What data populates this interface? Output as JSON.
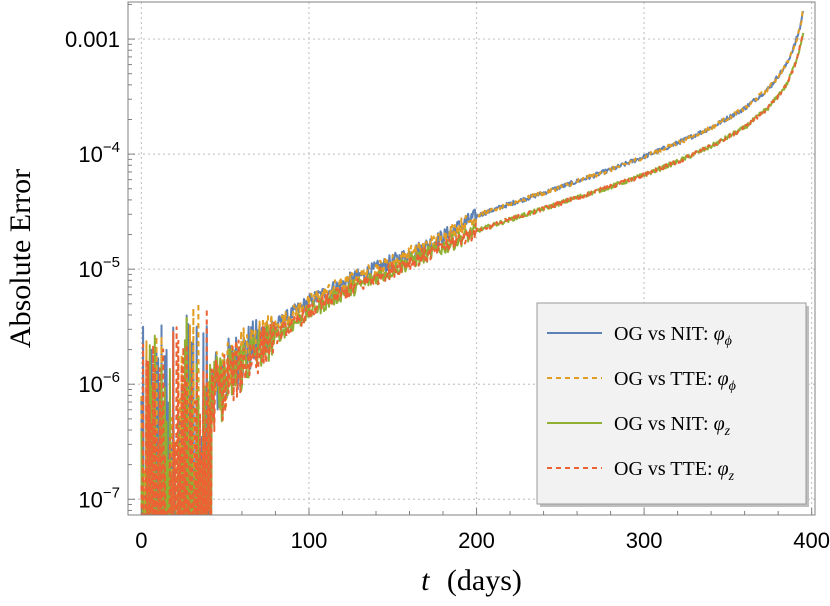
{
  "chart_data": {
    "type": "line",
    "title": "",
    "xlabel": {
      "var": "t",
      "unit": "(days)"
    },
    "ylabel": "Absolute Error",
    "xlim": [
      -8,
      402
    ],
    "ylim": [
      7.3e-08,
      0.0021
    ],
    "yscale": "log",
    "x_ticks": [
      0,
      100,
      200,
      300,
      400
    ],
    "y_ticks": [
      {
        "value": 1e-07,
        "base": "10",
        "exp": "−7"
      },
      {
        "value": 1e-06,
        "base": "10",
        "exp": "−6"
      },
      {
        "value": 1e-05,
        "base": "10",
        "exp": "−5"
      },
      {
        "value": 0.0001,
        "base": "10",
        "exp": "−4"
      },
      {
        "value": 0.001,
        "text": "0.001"
      }
    ],
    "grid": true,
    "legend_position": "bottom-right",
    "series": [
      {
        "name": "OG vs NIT: φ_ϕ",
        "legend": {
          "prefix": "OG vs NIT: ",
          "sym": "φ",
          "sub": "ϕ"
        },
        "color": "#5E81B5",
        "dash": "solid",
        "points": [
          [
            0,
            4e-07
          ],
          [
            20,
            5e-07
          ],
          [
            40,
            8.5e-07
          ],
          [
            60,
            1.8e-06
          ],
          [
            80,
            3.2e-06
          ],
          [
            100,
            5.2e-06
          ],
          [
            120,
            7.5e-06
          ],
          [
            140,
            1e-05
          ],
          [
            160,
            1.35e-05
          ],
          [
            180,
            1.9e-05
          ],
          [
            200,
            2.9e-05
          ],
          [
            220,
            3.7e-05
          ],
          [
            240,
            4.6e-05
          ],
          [
            260,
            5.8e-05
          ],
          [
            280,
            7.3e-05
          ],
          [
            300,
            9.5e-05
          ],
          [
            320,
            0.000125
          ],
          [
            340,
            0.00017
          ],
          [
            360,
            0.00025
          ],
          [
            375,
            0.00038
          ],
          [
            385,
            0.0006
          ],
          [
            390,
            0.0009
          ],
          [
            393,
            0.00125
          ],
          [
            395,
            0.0018
          ]
        ]
      },
      {
        "name": "OG vs TTE: φ_ϕ",
        "legend": {
          "prefix": "OG vs TTE: ",
          "sym": "φ",
          "sub": "ϕ"
        },
        "color": "#E19C24",
        "dash": "dashed",
        "points": [
          [
            0,
            4e-07
          ],
          [
            20,
            5e-07
          ],
          [
            40,
            8.5e-07
          ],
          [
            60,
            1.8e-06
          ],
          [
            80,
            3.2e-06
          ],
          [
            100,
            5.2e-06
          ],
          [
            120,
            7.5e-06
          ],
          [
            140,
            1e-05
          ],
          [
            160,
            1.35e-05
          ],
          [
            180,
            1.9e-05
          ],
          [
            200,
            2.9e-05
          ],
          [
            220,
            3.7e-05
          ],
          [
            240,
            4.6e-05
          ],
          [
            260,
            5.8e-05
          ],
          [
            280,
            7.3e-05
          ],
          [
            300,
            9.5e-05
          ],
          [
            320,
            0.000125
          ],
          [
            340,
            0.00017
          ],
          [
            360,
            0.00025
          ],
          [
            375,
            0.00038
          ],
          [
            385,
            0.0006
          ],
          [
            390,
            0.0009
          ],
          [
            393,
            0.00125
          ],
          [
            395,
            0.0018
          ]
        ]
      },
      {
        "name": "OG vs NIT: φ_z",
        "legend": {
          "prefix": "OG vs NIT: ",
          "sym": "φ",
          "sub": "z"
        },
        "color": "#8FB032",
        "dash": "solid",
        "points": [
          [
            0,
            3.5e-07
          ],
          [
            20,
            4.2e-07
          ],
          [
            40,
            7e-07
          ],
          [
            60,
            1.5e-06
          ],
          [
            80,
            2.6e-06
          ],
          [
            100,
            4.2e-06
          ],
          [
            120,
            6.2e-06
          ],
          [
            140,
            8.5e-06
          ],
          [
            160,
            1.15e-05
          ],
          [
            180,
            1.55e-05
          ],
          [
            200,
            2.15e-05
          ],
          [
            220,
            2.7e-05
          ],
          [
            240,
            3.35e-05
          ],
          [
            260,
            4.2e-05
          ],
          [
            280,
            5.2e-05
          ],
          [
            300,
            6.6e-05
          ],
          [
            320,
            8.6e-05
          ],
          [
            340,
            0.000117
          ],
          [
            360,
            0.00017
          ],
          [
            375,
            0.00026
          ],
          [
            385,
            0.0004
          ],
          [
            390,
            0.0006
          ],
          [
            393,
            0.00085
          ],
          [
            395,
            0.00115
          ]
        ]
      },
      {
        "name": "OG vs TTE: φ_z",
        "legend": {
          "prefix": "OG vs TTE: ",
          "sym": "φ",
          "sub": "z"
        },
        "color": "#EB6235",
        "dash": "dashed",
        "points": [
          [
            0,
            3.5e-07
          ],
          [
            20,
            4.2e-07
          ],
          [
            40,
            7e-07
          ],
          [
            60,
            1.5e-06
          ],
          [
            80,
            2.6e-06
          ],
          [
            100,
            4.2e-06
          ],
          [
            120,
            6.2e-06
          ],
          [
            140,
            8.5e-06
          ],
          [
            160,
            1.15e-05
          ],
          [
            180,
            1.55e-05
          ],
          [
            200,
            2.15e-05
          ],
          [
            220,
            2.7e-05
          ],
          [
            240,
            3.35e-05
          ],
          [
            260,
            4.2e-05
          ],
          [
            280,
            5.2e-05
          ],
          [
            300,
            6.6e-05
          ],
          [
            320,
            8.6e-05
          ],
          [
            340,
            0.000117
          ],
          [
            360,
            0.00017
          ],
          [
            375,
            0.00026
          ],
          [
            385,
            0.0004
          ],
          [
            390,
            0.0006
          ],
          [
            393,
            0.00085
          ],
          [
            395,
            0.00115
          ]
        ]
      }
    ]
  }
}
